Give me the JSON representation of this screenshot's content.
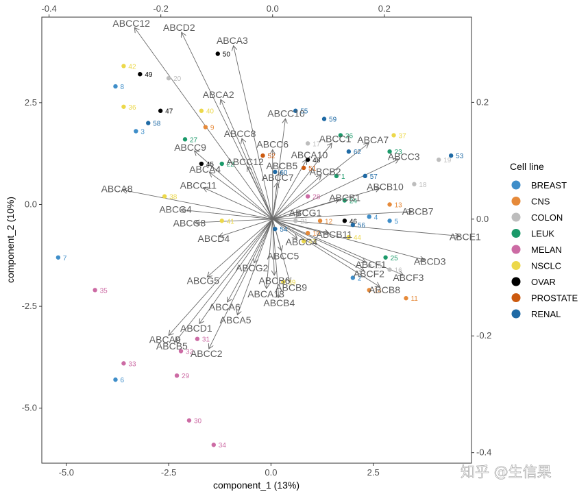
{
  "watermark": "知乎 @生信果",
  "chart_data": {
    "type": "scatter",
    "subtype": "pca-biplot",
    "xlabel": "component_1  (13%)",
    "ylabel": "component_2  (10%)",
    "xlim": [
      -5.6,
      4.9
    ],
    "ylim": [
      -6.35,
      4.6
    ],
    "xticks": [
      -5.0,
      -2.5,
      0.0,
      2.5
    ],
    "yticks": [
      -5.0,
      -2.5,
      0.0,
      2.5
    ],
    "x_tick_labels": [
      "-5.0",
      "-2.5",
      "0.0",
      "2.5"
    ],
    "y_tick_labels": [
      "-5.0",
      "-2.5",
      "0.0",
      "2.5"
    ],
    "secondary_xlim": [
      -0.413,
      0.356
    ],
    "secondary_ylim": [
      -0.418,
      0.346
    ],
    "secondary_xticks": [
      -0.4,
      -0.2,
      0.0,
      0.2
    ],
    "secondary_yticks": [
      -0.4,
      -0.2,
      0.0,
      0.2
    ],
    "secondary_x_tick_labels": [
      "-0.4",
      "-0.2",
      "0.0",
      "0.2"
    ],
    "secondary_y_tick_labels": [
      "-0.4",
      "-0.2",
      "0.0",
      "0.2"
    ],
    "grid": false,
    "legend_placement": "right",
    "legend_title": "Cell line",
    "groups": [
      {
        "name": "BREAST",
        "color": "#3f8ec9"
      },
      {
        "name": "CNS",
        "color": "#e68a3a"
      },
      {
        "name": "COLON",
        "color": "#bdbdbd"
      },
      {
        "name": "LEUK",
        "color": "#1b9a6a"
      },
      {
        "name": "MELAN",
        "color": "#cc6ba4"
      },
      {
        "name": "NSCLC",
        "color": "#ecd84a"
      },
      {
        "name": "OVAR",
        "color": "#000000"
      },
      {
        "name": "PROSTATE",
        "color": "#cc5a0f"
      },
      {
        "name": "RENAL",
        "color": "#1f6aa5"
      }
    ],
    "points": [
      {
        "id": "1",
        "x": 1.6,
        "y": 0.7,
        "group": "LEUK"
      },
      {
        "id": "2",
        "x": 2.0,
        "y": -1.8,
        "group": "BREAST"
      },
      {
        "id": "3",
        "x": -3.3,
        "y": 1.8,
        "group": "BREAST"
      },
      {
        "id": "4",
        "x": 2.4,
        "y": -0.3,
        "group": "BREAST"
      },
      {
        "id": "5",
        "x": 2.9,
        "y": -0.4,
        "group": "BREAST"
      },
      {
        "id": "6",
        "x": -3.8,
        "y": -4.3,
        "group": "BREAST"
      },
      {
        "id": "7",
        "x": -5.2,
        "y": -1.3,
        "group": "BREAST"
      },
      {
        "id": "8",
        "x": -3.8,
        "y": 2.9,
        "group": "BREAST"
      },
      {
        "id": "9",
        "x": -1.6,
        "y": 1.9,
        "group": "CNS"
      },
      {
        "id": "10",
        "x": 0.9,
        "y": -0.7,
        "group": "CNS"
      },
      {
        "id": "11",
        "x": 3.3,
        "y": -2.3,
        "group": "CNS"
      },
      {
        "id": "12",
        "x": 1.2,
        "y": -0.4,
        "group": "CNS"
      },
      {
        "id": "13",
        "x": 2.9,
        "y": 0.0,
        "group": "CNS"
      },
      {
        "id": "14",
        "x": 2.4,
        "y": -2.1,
        "group": "CNS"
      },
      {
        "id": "15",
        "x": 2.4,
        "y": -1.5,
        "group": "COLON"
      },
      {
        "id": "16",
        "x": 2.9,
        "y": -1.6,
        "group": "COLON"
      },
      {
        "id": "17",
        "x": 0.9,
        "y": 1.5,
        "group": "COLON"
      },
      {
        "id": "18",
        "x": 3.5,
        "y": 0.5,
        "group": "COLON"
      },
      {
        "id": "19",
        "x": 4.1,
        "y": 1.1,
        "group": "COLON"
      },
      {
        "id": "20",
        "x": -2.5,
        "y": 3.1,
        "group": "COLON"
      },
      {
        "id": "21",
        "x": 0.6,
        "y": -0.4,
        "group": "COLON"
      },
      {
        "id": "22",
        "x": -1.2,
        "y": 1.0,
        "group": "LEUK"
      },
      {
        "id": "23",
        "x": 2.9,
        "y": 1.3,
        "group": "LEUK"
      },
      {
        "id": "24",
        "x": 1.8,
        "y": 0.1,
        "group": "LEUK"
      },
      {
        "id": "25",
        "x": 2.8,
        "y": -1.3,
        "group": "LEUK"
      },
      {
        "id": "26",
        "x": 1.7,
        "y": 1.7,
        "group": "LEUK"
      },
      {
        "id": "27",
        "x": -2.1,
        "y": 1.6,
        "group": "LEUK"
      },
      {
        "id": "28",
        "x": 0.9,
        "y": 0.2,
        "group": "MELAN"
      },
      {
        "id": "29",
        "x": -2.3,
        "y": -4.2,
        "group": "MELAN"
      },
      {
        "id": "30",
        "x": -2.0,
        "y": -5.3,
        "group": "MELAN"
      },
      {
        "id": "31",
        "x": -1.8,
        "y": -3.3,
        "group": "MELAN"
      },
      {
        "id": "32",
        "x": -2.2,
        "y": -3.6,
        "group": "MELAN"
      },
      {
        "id": "33",
        "x": -3.6,
        "y": -3.9,
        "group": "MELAN"
      },
      {
        "id": "34",
        "x": -1.4,
        "y": -5.9,
        "group": "MELAN"
      },
      {
        "id": "35",
        "x": -4.3,
        "y": -2.1,
        "group": "MELAN"
      },
      {
        "id": "36",
        "x": -3.6,
        "y": 2.4,
        "group": "NSCLC"
      },
      {
        "id": "37",
        "x": 3.0,
        "y": 1.7,
        "group": "NSCLC"
      },
      {
        "id": "38",
        "x": -2.6,
        "y": 0.2,
        "group": "NSCLC"
      },
      {
        "id": "39",
        "x": 0.3,
        "y": -1.9,
        "group": "NSCLC"
      },
      {
        "id": "40",
        "x": -1.7,
        "y": 2.3,
        "group": "NSCLC"
      },
      {
        "id": "41",
        "x": -1.2,
        "y": -0.4,
        "group": "NSCLC"
      },
      {
        "id": "42",
        "x": -3.6,
        "y": 3.4,
        "group": "NSCLC"
      },
      {
        "id": "43",
        "x": 0.8,
        "y": -0.9,
        "group": "NSCLC"
      },
      {
        "id": "44",
        "x": 1.9,
        "y": -0.8,
        "group": "NSCLC"
      },
      {
        "id": "45",
        "x": -1.7,
        "y": 1.0,
        "group": "OVAR"
      },
      {
        "id": "46",
        "x": 1.8,
        "y": -0.4,
        "group": "OVAR"
      },
      {
        "id": "47",
        "x": -2.7,
        "y": 2.3,
        "group": "OVAR"
      },
      {
        "id": "48",
        "x": 0.9,
        "y": 1.1,
        "group": "OVAR"
      },
      {
        "id": "49",
        "x": -3.2,
        "y": 3.2,
        "group": "OVAR"
      },
      {
        "id": "50",
        "x": -1.3,
        "y": 3.7,
        "group": "OVAR"
      },
      {
        "id": "51",
        "x": 0.8,
        "y": 0.9,
        "group": "PROSTATE"
      },
      {
        "id": "52",
        "x": -0.2,
        "y": 1.2,
        "group": "PROSTATE"
      },
      {
        "id": "53",
        "x": 4.4,
        "y": 1.2,
        "group": "RENAL"
      },
      {
        "id": "54",
        "x": 0.1,
        "y": -0.6,
        "group": "RENAL"
      },
      {
        "id": "55",
        "x": 0.6,
        "y": 2.3,
        "group": "RENAL"
      },
      {
        "id": "56",
        "x": 2.0,
        "y": -0.5,
        "group": "RENAL"
      },
      {
        "id": "57",
        "x": 2.3,
        "y": 0.7,
        "group": "RENAL"
      },
      {
        "id": "58",
        "x": -3.0,
        "y": 2.0,
        "group": "RENAL"
      },
      {
        "id": "59",
        "x": 1.3,
        "y": 2.1,
        "group": "RENAL"
      },
      {
        "id": "60",
        "x": 0.1,
        "y": 0.8,
        "group": "RENAL"
      },
      {
        "id": "62",
        "x": 1.9,
        "y": 1.3,
        "group": "RENAL"
      }
    ],
    "loadings": [
      {
        "name": "ABCC12",
        "x": -0.247,
        "y": 0.328
      },
      {
        "name": "ABCD2",
        "x": -0.163,
        "y": 0.32
      },
      {
        "name": "ABCA3",
        "x": -0.07,
        "y": 0.297
      },
      {
        "name": "ABCA2",
        "x": -0.093,
        "y": 0.205
      },
      {
        "name": "ABCC10",
        "x": 0.023,
        "y": 0.172
      },
      {
        "name": "ABCC8",
        "x": -0.055,
        "y": 0.138
      },
      {
        "name": "ABCC9",
        "x": -0.14,
        "y": 0.117
      },
      {
        "name": "ABCC6",
        "x": 0.0,
        "y": 0.119
      },
      {
        "name": "ABCC1",
        "x": 0.106,
        "y": 0.13
      },
      {
        "name": "ABCA7",
        "x": 0.172,
        "y": 0.13
      },
      {
        "name": "ABCA10",
        "x": 0.061,
        "y": 0.102
      },
      {
        "name": "ABCC3",
        "x": 0.226,
        "y": 0.103
      },
      {
        "name": "ABCC12",
        "x": -0.045,
        "y": 0.09
      },
      {
        "name": "ABCB2",
        "x": 0.087,
        "y": 0.075
      },
      {
        "name": "ABCA4",
        "x": -0.113,
        "y": 0.08
      },
      {
        "name": "ABCB5",
        "x": 0.015,
        "y": 0.082
      },
      {
        "name": "ABCC7",
        "x": 0.008,
        "y": 0.062
      },
      {
        "name": "ABCC11",
        "x": -0.124,
        "y": 0.054
      },
      {
        "name": "ABCB10",
        "x": 0.192,
        "y": 0.053
      },
      {
        "name": "ABCA8",
        "x": -0.269,
        "y": 0.05
      },
      {
        "name": "ABCB1",
        "x": 0.12,
        "y": 0.034
      },
      {
        "name": "ABCB7",
        "x": 0.25,
        "y": 0.013
      },
      {
        "name": "ABCG4",
        "x": -0.164,
        "y": 0.016
      },
      {
        "name": "ABCG1",
        "x": 0.049,
        "y": 0.009
      },
      {
        "name": "ABCG8",
        "x": -0.139,
        "y": -0.006
      },
      {
        "name": "ABCB11",
        "x": 0.101,
        "y": -0.024
      },
      {
        "name": "ABCE1",
        "x": 0.335,
        "y": -0.029
      },
      {
        "name": "ABCD4",
        "x": -0.096,
        "y": -0.03
      },
      {
        "name": "ABCC4",
        "x": 0.044,
        "y": -0.033
      },
      {
        "name": "ABCC5",
        "x": 0.016,
        "y": -0.054
      },
      {
        "name": "ABCD3",
        "x": 0.272,
        "y": -0.07
      },
      {
        "name": "ABCF1",
        "x": 0.167,
        "y": -0.074
      },
      {
        "name": "ABCG2",
        "x": -0.033,
        "y": -0.075
      },
      {
        "name": "ABCF3",
        "x": 0.234,
        "y": -0.096
      },
      {
        "name": "ABCG5",
        "x": -0.117,
        "y": -0.099
      },
      {
        "name": "ABCF2",
        "x": 0.164,
        "y": -0.089
      },
      {
        "name": "ABCB6",
        "x": 0.003,
        "y": -0.096
      },
      {
        "name": "ABCB9",
        "x": 0.031,
        "y": -0.108
      },
      {
        "name": "ABCB8",
        "x": 0.192,
        "y": -0.116
      },
      {
        "name": "ABCA13",
        "x": -0.011,
        "y": -0.119
      },
      {
        "name": "ABCB4",
        "x": 0.011,
        "y": -0.134
      },
      {
        "name": "ABCA6",
        "x": -0.081,
        "y": -0.142
      },
      {
        "name": "ABCA5",
        "x": -0.063,
        "y": -0.164
      },
      {
        "name": "ABCD1",
        "x": -0.131,
        "y": -0.179
      },
      {
        "name": "ABCA9",
        "x": -0.186,
        "y": -0.199
      },
      {
        "name": "ABCB5",
        "x": -0.174,
        "y": -0.21
      },
      {
        "name": "ABCC2",
        "x": -0.114,
        "y": -0.222
      }
    ]
  }
}
